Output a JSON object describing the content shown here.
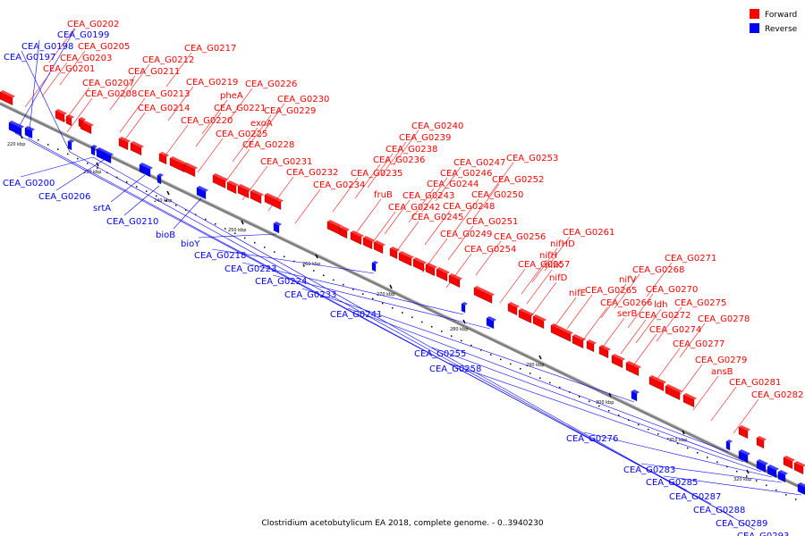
{
  "caption": "Clostridium acetobutylicum EA 2018, complete genome. - 0..3940230",
  "legend": [
    {
      "label": "Forward",
      "color": "#ff0000"
    },
    {
      "label": "Reverse",
      "color": "#0000ff"
    }
  ],
  "colors": {
    "forward": "#ff0000",
    "reverse": "#0000ff",
    "backbone": "#808080"
  },
  "ticks": [
    "220 kbp",
    "230 kbp",
    "240 kbp",
    "250 kbp",
    "260 kbp",
    "270 kbp",
    "280 kbp",
    "290 kbp",
    "300 kbp",
    "310 kbp",
    "320 kbp"
  ],
  "forward_labels": [
    "CEA_G0202",
    "CEA_G0205",
    "CEA_G0203",
    "CEA_G0201",
    "CEA_G0207",
    "CEA_G0208",
    "CEA_G0217",
    "CEA_G0212",
    "CEA_G0211",
    "CEA_G0219",
    "CEA_G0213",
    "CEA_G0214",
    "pheA",
    "CEA_G0221",
    "CEA_G0220",
    "CEA_G0226",
    "CEA_G0230",
    "CEA_G0229",
    "exoA",
    "CEA_G0225",
    "CEA_G0228",
    "CEA_G0231",
    "CEA_G0232",
    "CEA_G0234",
    "CEA_G0240",
    "CEA_G0239",
    "CEA_G0238",
    "CEA_G0236",
    "CEA_G0235",
    "fruB",
    "CEA_G0247",
    "CEA_G0246",
    "CEA_G0244",
    "CEA_G0243",
    "CEA_G0242",
    "CEA_G0245",
    "CEA_G0253",
    "CEA_G0252",
    "CEA_G0250",
    "CEA_G0248",
    "CEA_G0251",
    "CEA_G0249",
    "CEA_G0254",
    "CEA_G0256",
    "CEA_G0261",
    "nifHD",
    "nifH",
    "CEA_G0257",
    "nifK",
    "nifD",
    "nifE",
    "CEA_G0265",
    "CEA_G0266",
    "serB",
    "CEA_G0271",
    "CEA_G0268",
    "nifV",
    "CEA_G0270",
    "ldh",
    "CEA_G0272",
    "CEA_G0275",
    "CEA_G0274",
    "CEA_G0278",
    "CEA_G0277",
    "CEA_G0279",
    "ansB",
    "CEA_G0281",
    "CEA_G0282"
  ],
  "reverse_labels": [
    "CEA_G0199",
    "CEA_G0198",
    "CEA_G0197",
    "CEA_G0200",
    "CEA_G0206",
    "srtA",
    "CEA_G0210",
    "bioB",
    "bioY",
    "CEA_G0218",
    "CEA_G0223",
    "CEA_G0224",
    "CEA_G0233",
    "CEA_G0241",
    "CEA_G0255",
    "CEA_G0258",
    "CEA_G0276",
    "CEA_G0283",
    "CEA_G0285",
    "CEA_G0287",
    "CEA_G0288",
    "CEA_G0289",
    "CEA_G0293"
  ]
}
